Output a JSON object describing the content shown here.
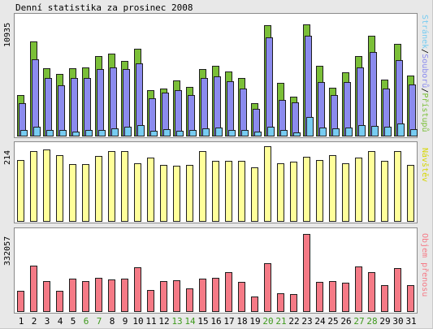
{
  "chart_data": {
    "type": "bar",
    "title": "Denní statistika za prosinec 2008",
    "categories": [
      "1",
      "2",
      "3",
      "4",
      "5",
      "6",
      "7",
      "8",
      "9",
      "10",
      "11",
      "12",
      "13",
      "14",
      "15",
      "16",
      "17",
      "18",
      "19",
      "20",
      "21",
      "22",
      "23",
      "24",
      "25",
      "26",
      "27",
      "28",
      "29",
      "30",
      "31"
    ],
    "weekend_days": [
      "6",
      "7",
      "13",
      "14",
      "20",
      "21",
      "27",
      "28"
    ],
    "panels": [
      {
        "ymax_label": "10935",
        "ylim": [
          0,
          10935
        ],
        "right_label": [
          "Stránek",
          "/",
          "Souborů",
          "/",
          "Přístupů"
        ],
        "right_label_colors": [
          "#77ccf2",
          "#000000",
          "#8b8bee",
          "#000000",
          "#7bbf38"
        ],
        "series": [
          {
            "name": "Přístupů",
            "color": "#7bbf38",
            "values": [
              3840,
              8790,
              6340,
              5820,
              6340,
              6420,
              7470,
              7690,
              7030,
              8130,
              4270,
              4480,
              5170,
              4580,
              6290,
              6580,
              6050,
              5420,
              3120,
              10300,
              5000,
              3720,
              10380,
              6540,
              4550,
              5920,
              7460,
              9380,
              5290,
              8630,
              5630
            ]
          },
          {
            "name": "Souborů",
            "color": "#8b8bee",
            "values": [
              3080,
              7150,
              5410,
              4750,
              5410,
              5420,
              6280,
              6400,
              6290,
              6800,
              3520,
              4100,
              4290,
              3880,
              5420,
              5560,
              5160,
              4470,
              2580,
              9210,
              3420,
              3150,
              9330,
              5080,
              3850,
              5060,
              6430,
              7870,
              4420,
              7060,
              4840
            ]
          },
          {
            "name": "Stránek",
            "color": "#77ccf2",
            "values": [
              610,
              880,
              610,
              580,
              460,
              640,
              640,
              770,
              890,
              1040,
              500,
              650,
              540,
              640,
              750,
              800,
              640,
              640,
              460,
              930,
              580,
              410,
              1840,
              810,
              780,
              810,
              1060,
              960,
              870,
              1180,
              710
            ]
          }
        ]
      },
      {
        "ymax_label": "214",
        "ylim": [
          0,
          214
        ],
        "right_label": [
          "Návštěv"
        ],
        "right_label_colors": [
          "#d6d600"
        ],
        "series": [
          {
            "name": "Návštěv",
            "color": "#ffff9a",
            "values": [
              171,
              197,
              200,
              184,
              159,
              159,
              182,
              195,
              195,
              163,
              178,
              158,
              156,
              158,
              196,
              169,
              168,
              168,
              150,
              210,
              162,
              167,
              181,
              171,
              185,
              162,
              179,
              195,
              168,
              196,
              158
            ]
          }
        ]
      },
      {
        "ymax_label": "332057",
        "ylim": [
          0,
          332057
        ],
        "right_label": [
          "Objem přenosu"
        ],
        "right_label_colors": [
          "#f57a86"
        ],
        "series": [
          {
            "name": "Objem přenosu",
            "color": "#f57a86",
            "values": [
              90000,
              198000,
              130000,
              91000,
              142000,
              130000,
              144000,
              139000,
              142000,
              189000,
              95000,
              131000,
              134000,
              101000,
              141000,
              145000,
              168000,
              129000,
              64000,
              209000,
              79000,
              76000,
              332057,
              128000,
              133000,
              125000,
              192000,
              170000,
              114000,
              188000,
              113000
            ]
          }
        ]
      }
    ]
  }
}
